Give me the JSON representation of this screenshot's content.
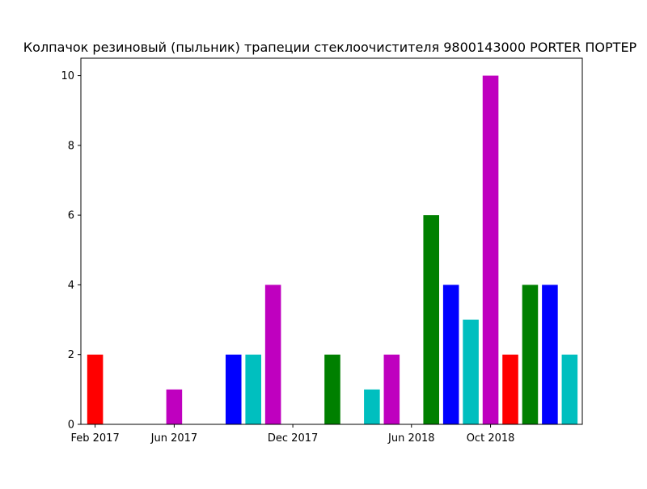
{
  "chart_data": {
    "type": "bar",
    "title": "Колпачок резиновый (пыльник) трапеции стеклоочистителя 9800143000 PORTER ПОРТЕР",
    "xlabel": "",
    "ylabel": "",
    "ylim": [
      0,
      10.5
    ],
    "y_ticks": [
      0,
      2,
      4,
      6,
      8,
      10
    ],
    "x_ticks": [
      "Feb 2017",
      "Jun 2017",
      "Dec 2017",
      "Jun 2018",
      "Oct 2018"
    ],
    "x_tick_dates": [
      "2017-02-01",
      "2017-06-01",
      "2017-12-01",
      "2018-06-01",
      "2018-10-01"
    ],
    "x_range": [
      "2017-01-01",
      "2019-01-01"
    ],
    "grid": false,
    "bars": [
      {
        "date": "2017-02-01",
        "value": 2,
        "color": "#ff0000"
      },
      {
        "date": "2017-06-01",
        "value": 1,
        "color": "#bf00bf"
      },
      {
        "date": "2017-09-01",
        "value": 2,
        "color": "#0000ff"
      },
      {
        "date": "2017-10-01",
        "value": 2,
        "color": "#00bfbf"
      },
      {
        "date": "2017-11-01",
        "value": 4,
        "color": "#bf00bf"
      },
      {
        "date": "2018-02-01",
        "value": 2,
        "color": "#008000"
      },
      {
        "date": "2018-04-01",
        "value": 1,
        "color": "#00bfbf"
      },
      {
        "date": "2018-05-01",
        "value": 2,
        "color": "#bf00bf"
      },
      {
        "date": "2018-07-01",
        "value": 6,
        "color": "#008000"
      },
      {
        "date": "2018-08-01",
        "value": 4,
        "color": "#0000ff"
      },
      {
        "date": "2018-09-01",
        "value": 3,
        "color": "#00bfbf"
      },
      {
        "date": "2018-10-01",
        "value": 10,
        "color": "#bf00bf"
      },
      {
        "date": "2018-11-01",
        "value": 2,
        "color": "#ff0000"
      },
      {
        "date": "2018-12-01",
        "value": 4,
        "color": "#008000"
      },
      {
        "date": "2019-01-01",
        "value": 4,
        "color": "#0000ff"
      },
      {
        "date": "2019-02-01",
        "value": 2,
        "color": "#00bfbf"
      }
    ]
  }
}
